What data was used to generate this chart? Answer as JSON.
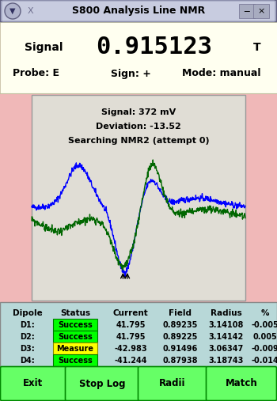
{
  "title": "S800 Analysis Line NMR",
  "signal_label": "Signal",
  "signal_value": "0.915123",
  "signal_unit": "T",
  "probe": "Probe: E",
  "sign": "Sign: +",
  "mode": "Mode: manual",
  "plot_text1": "Signal: 372 mV",
  "plot_text2": "Deviation: -13.52",
  "plot_text3": "Searching NMR2 (attempt 0)",
  "table_headers": [
    "Dipole",
    "Status",
    "Current",
    "Field",
    "Radius",
    "%"
  ],
  "table_rows": [
    [
      "D1:",
      "Success",
      "41.795",
      "0.89235",
      "3.14108",
      "-0.005"
    ],
    [
      "D2:",
      "Success",
      "41.795",
      "0.89225",
      "3.14142",
      "0.005"
    ],
    [
      "D3:",
      "Measure",
      "-42.983",
      "0.91496",
      "3.06347",
      "-0.009"
    ],
    [
      "D4:",
      "Success",
      "-41.244",
      "0.87938",
      "3.18743",
      "-0.014"
    ]
  ],
  "status_colors": [
    "#00ff00",
    "#00ff00",
    "#ffff00",
    "#00ff00"
  ],
  "button_labels": [
    "Exit",
    "Stop Log",
    "Radii",
    "Match"
  ],
  "button_color": "#66ff66",
  "bg_color": "#f0b8b8",
  "panel_bg": "#fffff0",
  "plot_bg": "#e0ddd5",
  "table_bg": "#b8d8d8",
  "titlebar_color": "#b0b8cc",
  "titlebar_bg": "#9898b8"
}
